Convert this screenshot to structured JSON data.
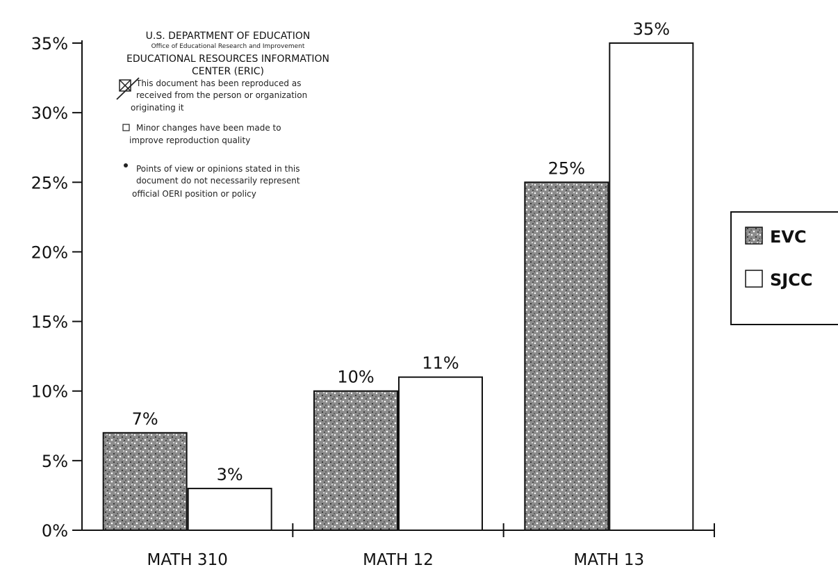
{
  "chart_data": {
    "type": "bar",
    "categories": [
      "MATH 310",
      "MATH 12",
      "MATH 13"
    ],
    "series": [
      {
        "name": "EVC",
        "values": [
          7,
          10,
          25
        ],
        "labels": [
          "7%",
          "10%",
          "25%"
        ]
      },
      {
        "name": "SJCC",
        "values": [
          3,
          11,
          35
        ],
        "labels": [
          "3%",
          "11%",
          "35%"
        ]
      }
    ],
    "ylim": [
      0,
      35
    ],
    "yticks": [
      0,
      5,
      10,
      15,
      20,
      25,
      30,
      35
    ],
    "ytick_labels": [
      "0%",
      "5%",
      "10%",
      "15%",
      "20%",
      "25%",
      "30%",
      "35%"
    ],
    "grid": false,
    "legend_position": "right",
    "colors": {
      "EVC": "#4a4a4a",
      "SJCC": "#ffffff",
      "axis": "#111111"
    },
    "title": "",
    "xlabel": "",
    "ylabel": ""
  },
  "eric_notice": {
    "line1": "U.S. DEPARTMENT OF EDUCATION",
    "line2": "Office of Educational Research and Improvement",
    "line3": "EDUCATIONAL RESOURCES INFORMATION",
    "line4": "CENTER (ERIC)",
    "item1a": "This document has been reproduced as",
    "item1b": "received from the person or organization",
    "item1c": "originating it",
    "item2a": "Minor changes have been made to",
    "item2b": "improve reproduction quality",
    "item3a": "Points of view or opinions stated in this",
    "item3b": "document do not necessarily represent",
    "item3c": "official OERI position or policy"
  }
}
